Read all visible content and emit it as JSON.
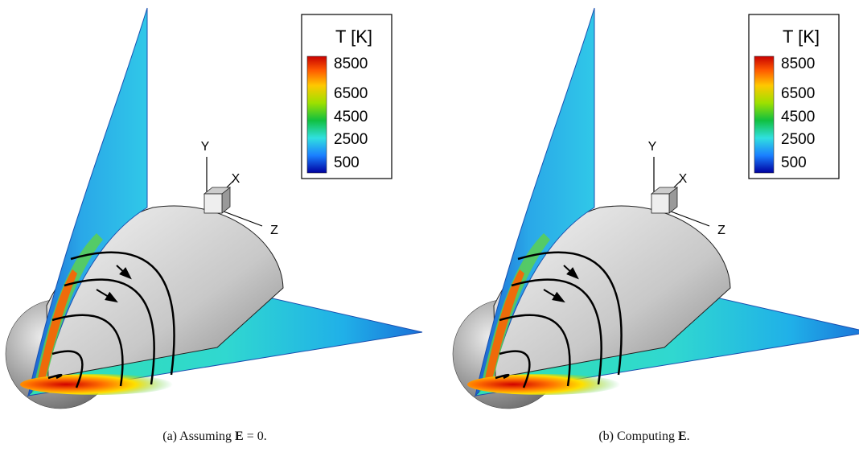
{
  "panels": [
    {
      "legend": {
        "title": "T [K]",
        "labels": [
          8500,
          6500,
          4500,
          2500,
          500
        ]
      },
      "axes": {
        "y": "Y",
        "x": "X",
        "z": "Z"
      },
      "caption": {
        "label": "(a)",
        "text": "Assuming",
        "symbol": "E",
        "tail": "= 0."
      }
    },
    {
      "legend": {
        "title": "T [K]",
        "labels": [
          8500,
          6500,
          4500,
          2500,
          500
        ]
      },
      "axes": {
        "y": "Y",
        "x": "X",
        "z": "Z"
      },
      "caption": {
        "label": "(b)",
        "text": "Computing",
        "symbol": "E",
        "tail": "."
      }
    }
  ]
}
